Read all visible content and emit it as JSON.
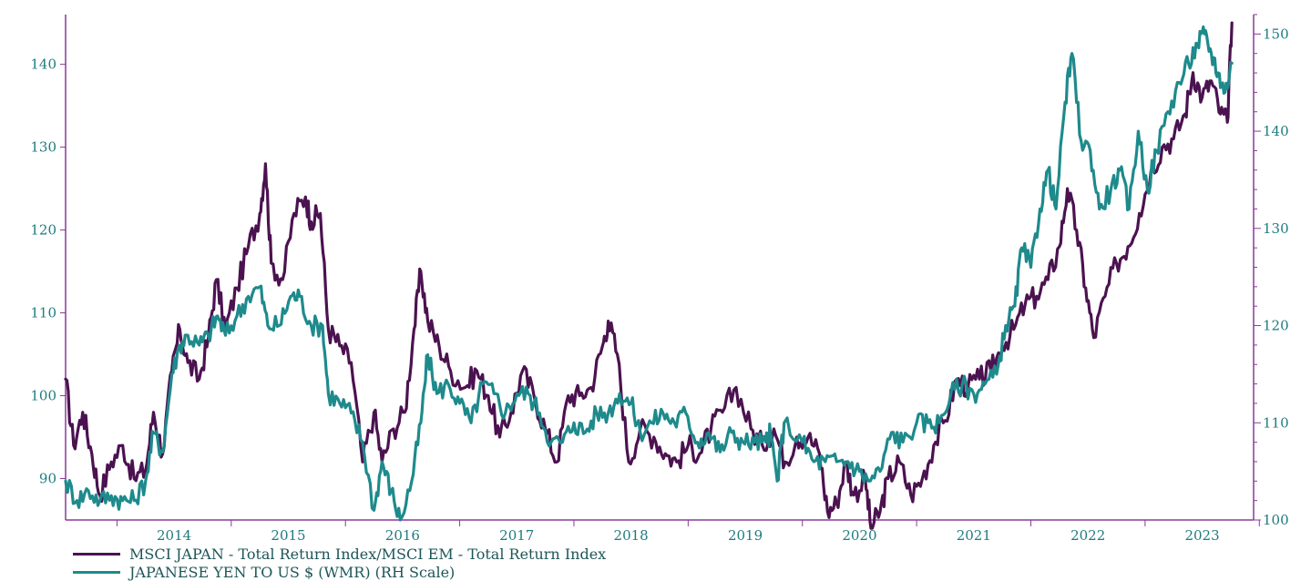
{
  "chart_data": {
    "type": "line",
    "title": "",
    "x_ticks": [
      "2014",
      "2015",
      "2016",
      "2017",
      "2018",
      "2019",
      "2020",
      "2021",
      "2022",
      "2023"
    ],
    "left_axis": {
      "ticks": [
        90,
        100,
        110,
        120,
        130,
        140
      ],
      "range": [
        85,
        146
      ]
    },
    "right_axis": {
      "ticks": [
        100,
        110,
        120,
        130,
        140,
        150
      ],
      "range": [
        100,
        152
      ]
    },
    "x_range": [
      2013.55,
      2023.95
    ],
    "series": [
      {
        "name": "MSCI JAPAN - Total Return Index/MSCI EM - Total Return Index",
        "axis": "left",
        "color": "#4b1250",
        "points": [
          [
            2013.55,
            102
          ],
          [
            2013.62,
            94
          ],
          [
            2013.7,
            98
          ],
          [
            2013.78,
            93
          ],
          [
            2013.85,
            88
          ],
          [
            2013.95,
            92
          ],
          [
            2014.05,
            94
          ],
          [
            2014.15,
            90
          ],
          [
            2014.25,
            91
          ],
          [
            2014.32,
            98
          ],
          [
            2014.4,
            93
          ],
          [
            2014.48,
            103
          ],
          [
            2014.55,
            108
          ],
          [
            2014.62,
            104
          ],
          [
            2014.72,
            102
          ],
          [
            2014.8,
            107
          ],
          [
            2014.87,
            114
          ],
          [
            2014.95,
            108
          ],
          [
            2015.05,
            113
          ],
          [
            2015.15,
            118
          ],
          [
            2015.25,
            122
          ],
          [
            2015.3,
            128
          ],
          [
            2015.35,
            116
          ],
          [
            2015.45,
            114
          ],
          [
            2015.55,
            122
          ],
          [
            2015.65,
            124
          ],
          [
            2015.7,
            121
          ],
          [
            2015.78,
            122
          ],
          [
            2015.85,
            108
          ],
          [
            2015.95,
            106
          ],
          [
            2016.05,
            104
          ],
          [
            2016.15,
            92
          ],
          [
            2016.25,
            98
          ],
          [
            2016.32,
            92
          ],
          [
            2016.42,
            96
          ],
          [
            2016.52,
            98
          ],
          [
            2016.6,
            108
          ],
          [
            2016.66,
            115
          ],
          [
            2016.72,
            109
          ],
          [
            2016.82,
            106
          ],
          [
            2016.92,
            103
          ],
          [
            2017.05,
            101
          ],
          [
            2017.15,
            103
          ],
          [
            2017.25,
            100
          ],
          [
            2017.35,
            95
          ],
          [
            2017.45,
            98
          ],
          [
            2017.55,
            103
          ],
          [
            2017.65,
            100
          ],
          [
            2017.75,
            96
          ],
          [
            2017.85,
            92
          ],
          [
            2017.95,
            100
          ],
          [
            2018.05,
            100
          ],
          [
            2018.15,
            101
          ],
          [
            2018.25,
            106
          ],
          [
            2018.3,
            109
          ],
          [
            2018.38,
            105
          ],
          [
            2018.48,
            92
          ],
          [
            2018.58,
            96
          ],
          [
            2018.7,
            95
          ],
          [
            2018.8,
            93
          ],
          [
            2018.9,
            92
          ],
          [
            2019.0,
            94
          ],
          [
            2019.1,
            93
          ],
          [
            2019.2,
            96
          ],
          [
            2019.3,
            98
          ],
          [
            2019.42,
            101
          ],
          [
            2019.55,
            96
          ],
          [
            2019.65,
            94
          ],
          [
            2019.75,
            96
          ],
          [
            2019.85,
            92
          ],
          [
            2019.95,
            95
          ],
          [
            2020.05,
            95
          ],
          [
            2020.15,
            93
          ],
          [
            2020.22,
            86
          ],
          [
            2020.3,
            87
          ],
          [
            2020.38,
            92
          ],
          [
            2020.45,
            88
          ],
          [
            2020.55,
            90
          ],
          [
            2020.6,
            84
          ],
          [
            2020.68,
            86
          ],
          [
            2020.75,
            90
          ],
          [
            2020.85,
            92
          ],
          [
            2020.95,
            88
          ],
          [
            2021.05,
            90
          ],
          [
            2021.15,
            94
          ],
          [
            2021.25,
            97
          ],
          [
            2021.35,
            102
          ],
          [
            2021.45,
            101
          ],
          [
            2021.55,
            102
          ],
          [
            2021.65,
            103
          ],
          [
            2021.75,
            106
          ],
          [
            2021.85,
            108
          ],
          [
            2021.95,
            111
          ],
          [
            2022.05,
            112
          ],
          [
            2022.15,
            114
          ],
          [
            2022.25,
            118
          ],
          [
            2022.32,
            125
          ],
          [
            2022.4,
            120
          ],
          [
            2022.48,
            113
          ],
          [
            2022.55,
            107
          ],
          [
            2022.65,
            112
          ],
          [
            2022.75,
            116
          ],
          [
            2022.85,
            118
          ],
          [
            2022.95,
            122
          ],
          [
            2023.05,
            127
          ],
          [
            2023.15,
            130
          ],
          [
            2023.25,
            131
          ],
          [
            2023.35,
            134
          ],
          [
            2023.42,
            139
          ],
          [
            2023.5,
            136
          ],
          [
            2023.58,
            138
          ],
          [
            2023.66,
            134
          ],
          [
            2023.72,
            133
          ],
          [
            2023.76,
            145
          ]
        ]
      },
      {
        "name": "JAPANESE YEN TO US $ (WMR) (RH Scale)",
        "axis": "right",
        "color": "#1e8a8c",
        "points": [
          [
            2013.55,
            104
          ],
          [
            2013.65,
            102
          ],
          [
            2013.75,
            103
          ],
          [
            2013.85,
            102
          ],
          [
            2013.95,
            102.5
          ],
          [
            2014.05,
            102
          ],
          [
            2014.15,
            102
          ],
          [
            2014.25,
            104
          ],
          [
            2014.32,
            109
          ],
          [
            2014.4,
            107
          ],
          [
            2014.48,
            115
          ],
          [
            2014.55,
            118
          ],
          [
            2014.62,
            119
          ],
          [
            2014.72,
            118
          ],
          [
            2014.8,
            119
          ],
          [
            2014.88,
            121
          ],
          [
            2014.95,
            119
          ],
          [
            2015.05,
            121
          ],
          [
            2015.15,
            123
          ],
          [
            2015.25,
            124
          ],
          [
            2015.32,
            120
          ],
          [
            2015.42,
            120
          ],
          [
            2015.52,
            123
          ],
          [
            2015.6,
            123
          ],
          [
            2015.7,
            120
          ],
          [
            2015.8,
            120
          ],
          [
            2015.85,
            113
          ],
          [
            2015.95,
            112
          ],
          [
            2016.05,
            111
          ],
          [
            2016.15,
            108
          ],
          [
            2016.25,
            101
          ],
          [
            2016.32,
            106
          ],
          [
            2016.4,
            103
          ],
          [
            2016.48,
            100
          ],
          [
            2016.58,
            104
          ],
          [
            2016.66,
            110
          ],
          [
            2016.72,
            117
          ],
          [
            2016.8,
            113
          ],
          [
            2016.9,
            114
          ],
          [
            2017.0,
            112
          ],
          [
            2017.1,
            110
          ],
          [
            2017.2,
            114
          ],
          [
            2017.3,
            113
          ],
          [
            2017.4,
            111
          ],
          [
            2017.5,
            113
          ],
          [
            2017.6,
            113
          ],
          [
            2017.7,
            111
          ],
          [
            2017.8,
            108
          ],
          [
            2017.9,
            108
          ],
          [
            2018.0,
            110
          ],
          [
            2018.1,
            109
          ],
          [
            2018.2,
            111
          ],
          [
            2018.3,
            111
          ],
          [
            2018.4,
            113
          ],
          [
            2018.5,
            112
          ],
          [
            2018.58,
            109
          ],
          [
            2018.68,
            110
          ],
          [
            2018.78,
            111
          ],
          [
            2018.88,
            110
          ],
          [
            2018.98,
            111
          ],
          [
            2019.08,
            108
          ],
          [
            2019.18,
            109
          ],
          [
            2019.28,
            107
          ],
          [
            2019.38,
            109
          ],
          [
            2019.48,
            108
          ],
          [
            2019.58,
            108
          ],
          [
            2019.68,
            108
          ],
          [
            2019.72,
            109
          ],
          [
            2019.78,
            104
          ],
          [
            2019.84,
            110
          ],
          [
            2020.0,
            108
          ],
          [
            2020.1,
            106
          ],
          [
            2020.2,
            106
          ],
          [
            2020.3,
            106
          ],
          [
            2020.4,
            106
          ],
          [
            2020.5,
            105
          ],
          [
            2020.58,
            104
          ],
          [
            2020.68,
            105
          ],
          [
            2020.78,
            109
          ],
          [
            2020.88,
            108
          ],
          [
            2021.0,
            110
          ],
          [
            2021.1,
            110
          ],
          [
            2021.2,
            110
          ],
          [
            2021.3,
            113
          ],
          [
            2021.4,
            114
          ],
          [
            2021.5,
            113
          ],
          [
            2021.6,
            114
          ],
          [
            2021.7,
            115
          ],
          [
            2021.78,
            120
          ],
          [
            2021.86,
            122
          ],
          [
            2021.92,
            128
          ],
          [
            2022.0,
            126
          ],
          [
            2022.08,
            132
          ],
          [
            2022.15,
            136
          ],
          [
            2022.22,
            132
          ],
          [
            2022.3,
            143
          ],
          [
            2022.36,
            148
          ],
          [
            2022.44,
            139
          ],
          [
            2022.52,
            138
          ],
          [
            2022.6,
            132
          ],
          [
            2022.7,
            134
          ],
          [
            2022.78,
            136
          ],
          [
            2022.86,
            132
          ],
          [
            2022.94,
            140
          ],
          [
            2023.02,
            134
          ],
          [
            2023.1,
            138
          ],
          [
            2023.2,
            142
          ],
          [
            2023.3,
            145
          ],
          [
            2023.38,
            147
          ],
          [
            2023.46,
            149
          ],
          [
            2023.52,
            150
          ],
          [
            2023.58,
            148
          ],
          [
            2023.64,
            146
          ],
          [
            2023.7,
            144
          ],
          [
            2023.76,
            147
          ]
        ]
      }
    ],
    "legend_placement": "bottom-left",
    "grid": false
  }
}
